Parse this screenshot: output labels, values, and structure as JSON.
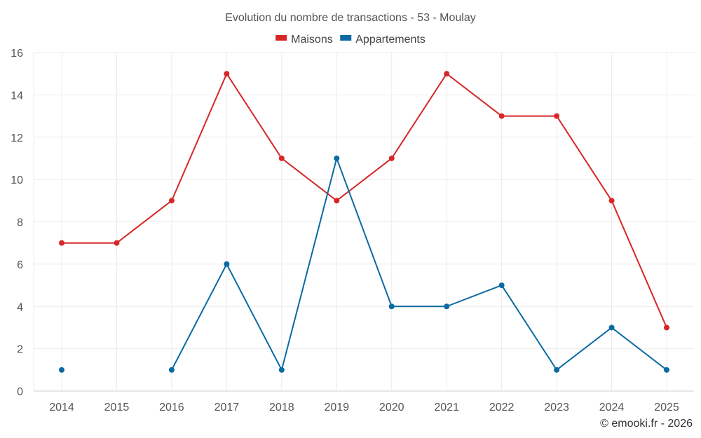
{
  "chart_data": {
    "type": "line",
    "title": "Evolution du nombre de transactions - 53 - Moulay",
    "categories": [
      "2014",
      "2015",
      "2016",
      "2017",
      "2018",
      "2019",
      "2020",
      "2021",
      "2022",
      "2023",
      "2024",
      "2025"
    ],
    "series": [
      {
        "name": "Maisons",
        "color": "#d62728",
        "values": [
          7,
          7,
          9,
          15,
          11,
          9,
          11,
          15,
          13,
          13,
          9,
          3
        ]
      },
      {
        "name": "Appartements",
        "color": "#0a6aa1",
        "values": [
          1,
          null,
          1,
          6,
          1,
          11,
          4,
          4,
          5,
          1,
          3,
          1
        ]
      }
    ],
    "ylim": [
      0,
      16
    ],
    "yticks": [
      "0",
      "2",
      "4",
      "6",
      "8",
      "10",
      "12",
      "14",
      "16"
    ],
    "grid": true,
    "legend_position": "top-center",
    "xlabel": "",
    "ylabel": ""
  },
  "credit": "© emooki.fr - 2026"
}
